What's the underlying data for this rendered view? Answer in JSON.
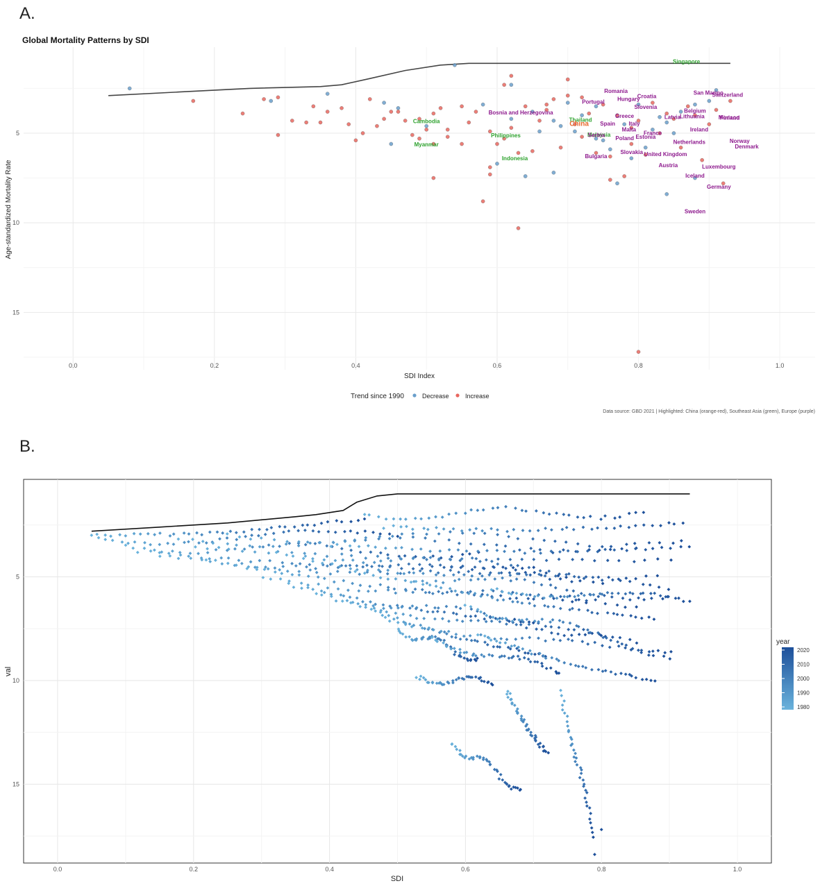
{
  "panels": {
    "a_label": "A.",
    "b_label": "B."
  },
  "chart_data": [
    {
      "type": "scatter",
      "title": "Global Mortality Patterns by SDI",
      "xlabel": "SDI Index",
      "ylabel": "Age-standardized Mortality Rate",
      "xlim": [
        -0.07,
        1.05
      ],
      "ylim": [
        18.2,
        0.2
      ],
      "y_reversed": true,
      "x_ticks": [
        0.0,
        0.2,
        0.4,
        0.6,
        0.8,
        1.0
      ],
      "x_tick_labels": [
        "0.0",
        "0.2",
        "0.4",
        "0.6",
        "0.8",
        "1.0"
      ],
      "y_ticks": [
        5,
        10,
        15
      ],
      "y_tick_labels": [
        "5",
        "10",
        "15"
      ],
      "grid": true,
      "legend": {
        "title": "Trend since 1990",
        "placement": "bottom",
        "entries": [
          {
            "label": "Decrease",
            "color": "#6a9fcb"
          },
          {
            "label": "Increase",
            "color": "#e8675f"
          }
        ]
      },
      "caption": "Data source: GBD 2021 | Highlighted: China (orange-red), Southeast Asia (green), Europe (purple)",
      "colors": {
        "decrease": "#6a9fcb",
        "increase": "#e8675f",
        "china": "#e8672c",
        "southeast_asia": "#2ea22e",
        "europe": "#8e1a8e",
        "frontier": "#444444"
      },
      "frontier": {
        "x": [
          0.05,
          0.15,
          0.25,
          0.35,
          0.38,
          0.42,
          0.47,
          0.52,
          0.56,
          0.62,
          0.7,
          0.8,
          0.9,
          0.93
        ],
        "y": [
          2.9,
          2.7,
          2.5,
          2.4,
          2.3,
          1.95,
          1.5,
          1.2,
          1.1,
          1.1,
          1.1,
          1.1,
          1.1,
          1.1
        ]
      },
      "series": [
        {
          "name": "Decrease",
          "x": [
            0.08,
            0.28,
            0.36,
            0.44,
            0.46,
            0.45,
            0.54,
            0.58,
            0.6,
            0.62,
            0.65,
            0.68,
            0.7,
            0.72,
            0.74,
            0.75,
            0.77,
            0.78,
            0.8,
            0.82,
            0.84,
            0.85,
            0.86,
            0.88,
            0.9,
            0.91,
            0.84,
            0.81,
            0.76,
            0.74,
            0.71,
            0.68,
            0.66,
            0.64,
            0.62,
            0.69,
            0.88,
            0.83,
            0.79,
            0.5
          ],
          "y": [
            2.5,
            3.2,
            2.8,
            3.3,
            3.6,
            5.6,
            1.2,
            3.4,
            6.7,
            2.3,
            3.8,
            4.3,
            3.3,
            4.0,
            3.5,
            5.4,
            7.8,
            4.5,
            3.4,
            4.8,
            4.4,
            5.0,
            3.8,
            3.4,
            3.2,
            2.6,
            8.4,
            5.8,
            5.9,
            5.3,
            4.9,
            7.2,
            4.9,
            7.4,
            4.2,
            4.6,
            7.5,
            4.1,
            6.4,
            4.6
          ]
        },
        {
          "name": "Increase",
          "x": [
            0.17,
            0.24,
            0.27,
            0.29,
            0.31,
            0.33,
            0.34,
            0.35,
            0.36,
            0.38,
            0.39,
            0.41,
            0.42,
            0.43,
            0.44,
            0.45,
            0.47,
            0.48,
            0.49,
            0.5,
            0.51,
            0.52,
            0.53,
            0.55,
            0.56,
            0.57,
            0.59,
            0.6,
            0.61,
            0.62,
            0.63,
            0.64,
            0.65,
            0.66,
            0.67,
            0.68,
            0.69,
            0.7,
            0.71,
            0.72,
            0.73,
            0.74,
            0.75,
            0.76,
            0.77,
            0.78,
            0.79,
            0.8,
            0.81,
            0.82,
            0.83,
            0.84,
            0.85,
            0.86,
            0.87,
            0.89,
            0.9,
            0.92,
            0.93,
            0.29,
            0.4,
            0.46,
            0.49,
            0.51,
            0.53,
            0.58,
            0.59,
            0.61,
            0.63,
            0.67,
            0.72,
            0.76,
            0.79,
            0.8,
            0.88,
            0.91,
            0.59,
            0.51,
            0.55,
            0.62,
            0.7
          ],
          "y": [
            3.2,
            3.9,
            3.1,
            3.0,
            4.3,
            4.4,
            3.5,
            4.4,
            3.8,
            3.6,
            4.5,
            5.0,
            3.1,
            4.6,
            4.2,
            3.8,
            4.3,
            5.1,
            5.3,
            4.8,
            3.9,
            3.6,
            5.2,
            3.5,
            4.4,
            3.8,
            4.9,
            5.6,
            2.3,
            4.7,
            6.1,
            3.5,
            6.0,
            4.3,
            3.4,
            3.1,
            5.8,
            2.0,
            4.5,
            5.2,
            3.9,
            6.1,
            3.4,
            7.6,
            4.0,
            7.4,
            5.6,
            4.3,
            6.2,
            3.3,
            5.0,
            3.9,
            4.2,
            5.8,
            3.5,
            6.5,
            4.5,
            7.8,
            3.2,
            5.1,
            5.4,
            3.8,
            4.2,
            7.5,
            4.8,
            8.8,
            6.9,
            5.3,
            10.3,
            3.7,
            3.0,
            6.3,
            4.7,
            17.2,
            4.0,
            3.7,
            7.3,
            5.6,
            5.6,
            1.8,
            2.9
          ]
        }
      ],
      "highlights": [
        {
          "label": "Singapore",
          "group": "southeast_asia",
          "x": 0.86,
          "y": 1.1
        },
        {
          "label": "Cambodia",
          "group": "southeast_asia",
          "x": 0.5,
          "y": 4.6
        },
        {
          "label": "Myanmar",
          "group": "southeast_asia",
          "x": 0.5,
          "y": 5.5
        },
        {
          "label": "Thailand",
          "group": "southeast_asia",
          "x": 0.72,
          "y": 4.4
        },
        {
          "label": "Philippines",
          "group": "southeast_asia",
          "x": 0.63,
          "y": 5.3
        },
        {
          "label": "Malaysia",
          "group": "southeast_asia",
          "x": 0.75,
          "y": 5.2
        },
        {
          "label": "Indonesia",
          "group": "southeast_asia",
          "x": 0.63,
          "y": 6.5
        },
        {
          "label": "China",
          "group": "china",
          "x": 0.72,
          "y": 4.6
        },
        {
          "label": "Romania",
          "group": "europe",
          "x": 0.78,
          "y": 3.3
        },
        {
          "label": "Portugal",
          "group": "europe",
          "x": 0.74,
          "y": 3.5
        },
        {
          "label": "Hungary",
          "group": "europe",
          "x": 0.79,
          "y": 3.5
        },
        {
          "label": "Croatia",
          "group": "europe",
          "x": 0.8,
          "y": 3.5
        },
        {
          "label": "San Marino",
          "group": "europe",
          "x": 0.9,
          "y": 3.4
        },
        {
          "label": "Switzerland",
          "group": "europe",
          "x": 0.93,
          "y": 3.2
        },
        {
          "label": "Slovenia",
          "group": "europe",
          "x": 0.82,
          "y": 3.8
        },
        {
          "label": "Belgium",
          "group": "europe",
          "x": 0.88,
          "y": 3.9
        },
        {
          "label": "Finland",
          "group": "europe",
          "x": 0.89,
          "y": 4.4
        },
        {
          "label": "Bosnia and Herzegovina",
          "group": "europe",
          "x": 0.72,
          "y": 4.1
        },
        {
          "label": "Greece",
          "group": "europe",
          "x": 0.8,
          "y": 4.3
        },
        {
          "label": "Latvia",
          "group": "europe",
          "x": 0.85,
          "y": 4.2
        },
        {
          "label": "Lithuania",
          "group": "europe",
          "x": 0.88,
          "y": 4.4
        },
        {
          "label": "Monaco",
          "group": "europe",
          "x": 0.93,
          "y": 4.3
        },
        {
          "label": "Spain",
          "group": "europe",
          "x": 0.78,
          "y": 4.8
        },
        {
          "label": "Italy",
          "group": "europe",
          "x": 0.8,
          "y": 4.8
        },
        {
          "label": "Malta",
          "group": "europe",
          "x": 0.82,
          "y": 4.9
        },
        {
          "label": "Ireland",
          "group": "europe",
          "x": 0.88,
          "y": 4.9
        },
        {
          "label": "France",
          "group": "europe",
          "x": 0.83,
          "y": 5.1
        },
        {
          "label": "Serbia",
          "group": "europe",
          "x": 0.77,
          "y": 4.9
        },
        {
          "label": "Poland",
          "group": "europe",
          "x": 0.81,
          "y": 5.0
        },
        {
          "label": "Estonia",
          "group": "europe",
          "x": 0.82,
          "y": 5.3
        },
        {
          "label": "Netherlands",
          "group": "europe",
          "x": 0.87,
          "y": 5.6
        },
        {
          "label": "Norway",
          "group": "europe",
          "x": 0.9,
          "y": 6.0
        },
        {
          "label": "Denmark",
          "group": "europe",
          "x": 0.91,
          "y": 6.0
        },
        {
          "label": "Bulgaria",
          "group": "europe",
          "x": 0.74,
          "y": 6.4
        },
        {
          "label": "Slovakia",
          "group": "europe",
          "x": 0.81,
          "y": 6.0
        },
        {
          "label": "United Kingdom",
          "group": "europe",
          "x": 0.86,
          "y": 6.2
        },
        {
          "label": "Luxembourg",
          "group": "europe",
          "x": 0.9,
          "y": 6.9
        },
        {
          "label": "Austria",
          "group": "europe",
          "x": 0.85,
          "y": 6.9
        },
        {
          "label": "Iceland",
          "group": "europe",
          "x": 0.88,
          "y": 7.4
        },
        {
          "label": "Germany",
          "group": "europe",
          "x": 0.9,
          "y": 7.7
        },
        {
          "label": "Sweden",
          "group": "europe",
          "x": 0.88,
          "y": 9.5
        }
      ]
    },
    {
      "type": "scatter",
      "title": "",
      "xlabel": "SDI",
      "ylabel": "val",
      "xlim": [
        -0.05,
        1.05
      ],
      "ylim": [
        18.8,
        0.3
      ],
      "y_reversed": true,
      "x_ticks": [
        0.0,
        0.2,
        0.4,
        0.6,
        0.8,
        1.0
      ],
      "x_tick_labels": [
        "0.0",
        "0.2",
        "0.4",
        "0.6",
        "0.8",
        "1.0"
      ],
      "y_ticks": [
        5,
        10,
        15
      ],
      "y_tick_labels": [
        "5",
        "10",
        "15"
      ],
      "grid": true,
      "legend": {
        "title": "year",
        "placement": "right",
        "type": "colorbar",
        "tick_labels": [
          "2020",
          "2010",
          "2000",
          "1990",
          "1980"
        ],
        "color_low": "#6ab3dc",
        "color_high": "#1d4f9a"
      },
      "colors": {
        "frontier": "#111111"
      },
      "frontier": {
        "x": [
          0.05,
          0.15,
          0.25,
          0.35,
          0.38,
          0.42,
          0.44,
          0.47,
          0.5,
          0.6,
          0.7,
          0.8,
          0.93
        ],
        "y": [
          2.8,
          2.6,
          2.4,
          2.1,
          2.0,
          1.8,
          1.4,
          1.1,
          1.0,
          1.0,
          1.0,
          1.0,
          1.0
        ]
      },
      "trajectories": [
        {
          "x0": 0.05,
          "y0": 3.0,
          "x1": 0.45,
          "y1": 2.2
        },
        {
          "x0": 0.06,
          "y0": 3.2,
          "x1": 0.5,
          "y1": 3.0
        },
        {
          "x0": 0.1,
          "y0": 3.5,
          "x1": 0.62,
          "y1": 3.9
        },
        {
          "x0": 0.12,
          "y0": 3.8,
          "x1": 0.7,
          "y1": 4.6
        },
        {
          "x0": 0.15,
          "y0": 4.0,
          "x1": 0.75,
          "y1": 5.0
        },
        {
          "x0": 0.18,
          "y0": 3.2,
          "x1": 0.85,
          "y1": 3.6
        },
        {
          "x0": 0.2,
          "y0": 3.6,
          "x1": 0.9,
          "y1": 4.2
        },
        {
          "x0": 0.22,
          "y0": 4.2,
          "x1": 0.8,
          "y1": 5.4
        },
        {
          "x0": 0.25,
          "y0": 3.0,
          "x1": 0.92,
          "y1": 3.3
        },
        {
          "x0": 0.28,
          "y0": 4.6,
          "x1": 0.78,
          "y1": 6.2
        },
        {
          "x0": 0.3,
          "y0": 5.0,
          "x1": 0.85,
          "y1": 6.5
        },
        {
          "x0": 0.32,
          "y0": 3.8,
          "x1": 0.88,
          "y1": 5.0
        },
        {
          "x0": 0.34,
          "y0": 5.4,
          "x1": 0.7,
          "y1": 7.2
        },
        {
          "x0": 0.36,
          "y0": 4.2,
          "x1": 0.9,
          "y1": 5.6
        },
        {
          "x0": 0.38,
          "y0": 5.8,
          "x1": 0.8,
          "y1": 7.8
        },
        {
          "x0": 0.4,
          "y0": 3.5,
          "x1": 0.93,
          "y1": 3.6
        },
        {
          "x0": 0.42,
          "y0": 6.2,
          "x1": 0.85,
          "y1": 8.2
        },
        {
          "x0": 0.44,
          "y0": 4.8,
          "x1": 0.9,
          "y1": 6.0
        },
        {
          "x0": 0.46,
          "y0": 6.6,
          "x1": 0.72,
          "y1": 8.8
        },
        {
          "x0": 0.48,
          "y0": 7.0,
          "x1": 0.9,
          "y1": 9.0
        },
        {
          "x0": 0.5,
          "y0": 7.5,
          "x1": 0.62,
          "y1": 9.0
        },
        {
          "x0": 0.52,
          "y0": 5.2,
          "x1": 0.88,
          "y1": 7.0
        },
        {
          "x0": 0.55,
          "y0": 8.0,
          "x1": 0.74,
          "y1": 9.7
        },
        {
          "x0": 0.45,
          "y0": 2.0,
          "x1": 0.86,
          "y1": 1.9
        },
        {
          "x0": 0.48,
          "y0": 2.6,
          "x1": 0.92,
          "y1": 2.4
        },
        {
          "x0": 0.53,
          "y0": 9.8,
          "x1": 0.64,
          "y1": 10.2
        },
        {
          "x0": 0.58,
          "y0": 13.0,
          "x1": 0.68,
          "y1": 15.2
        },
        {
          "x0": 0.66,
          "y0": 10.5,
          "x1": 0.72,
          "y1": 13.5
        },
        {
          "x0": 0.74,
          "y0": 10.5,
          "x1": 0.79,
          "y1": 17.5
        },
        {
          "x0": 0.6,
          "y0": 6.4,
          "x1": 0.9,
          "y1": 8.6
        },
        {
          "x0": 0.62,
          "y0": 7.8,
          "x1": 0.88,
          "y1": 10.0
        },
        {
          "x0": 0.64,
          "y0": 5.6,
          "x1": 0.93,
          "y1": 6.2
        }
      ],
      "points": {
        "x": [
          0.79,
          0.8,
          0.68
        ],
        "y": [
          18.4,
          17.2,
          15.3
        ]
      }
    }
  ]
}
